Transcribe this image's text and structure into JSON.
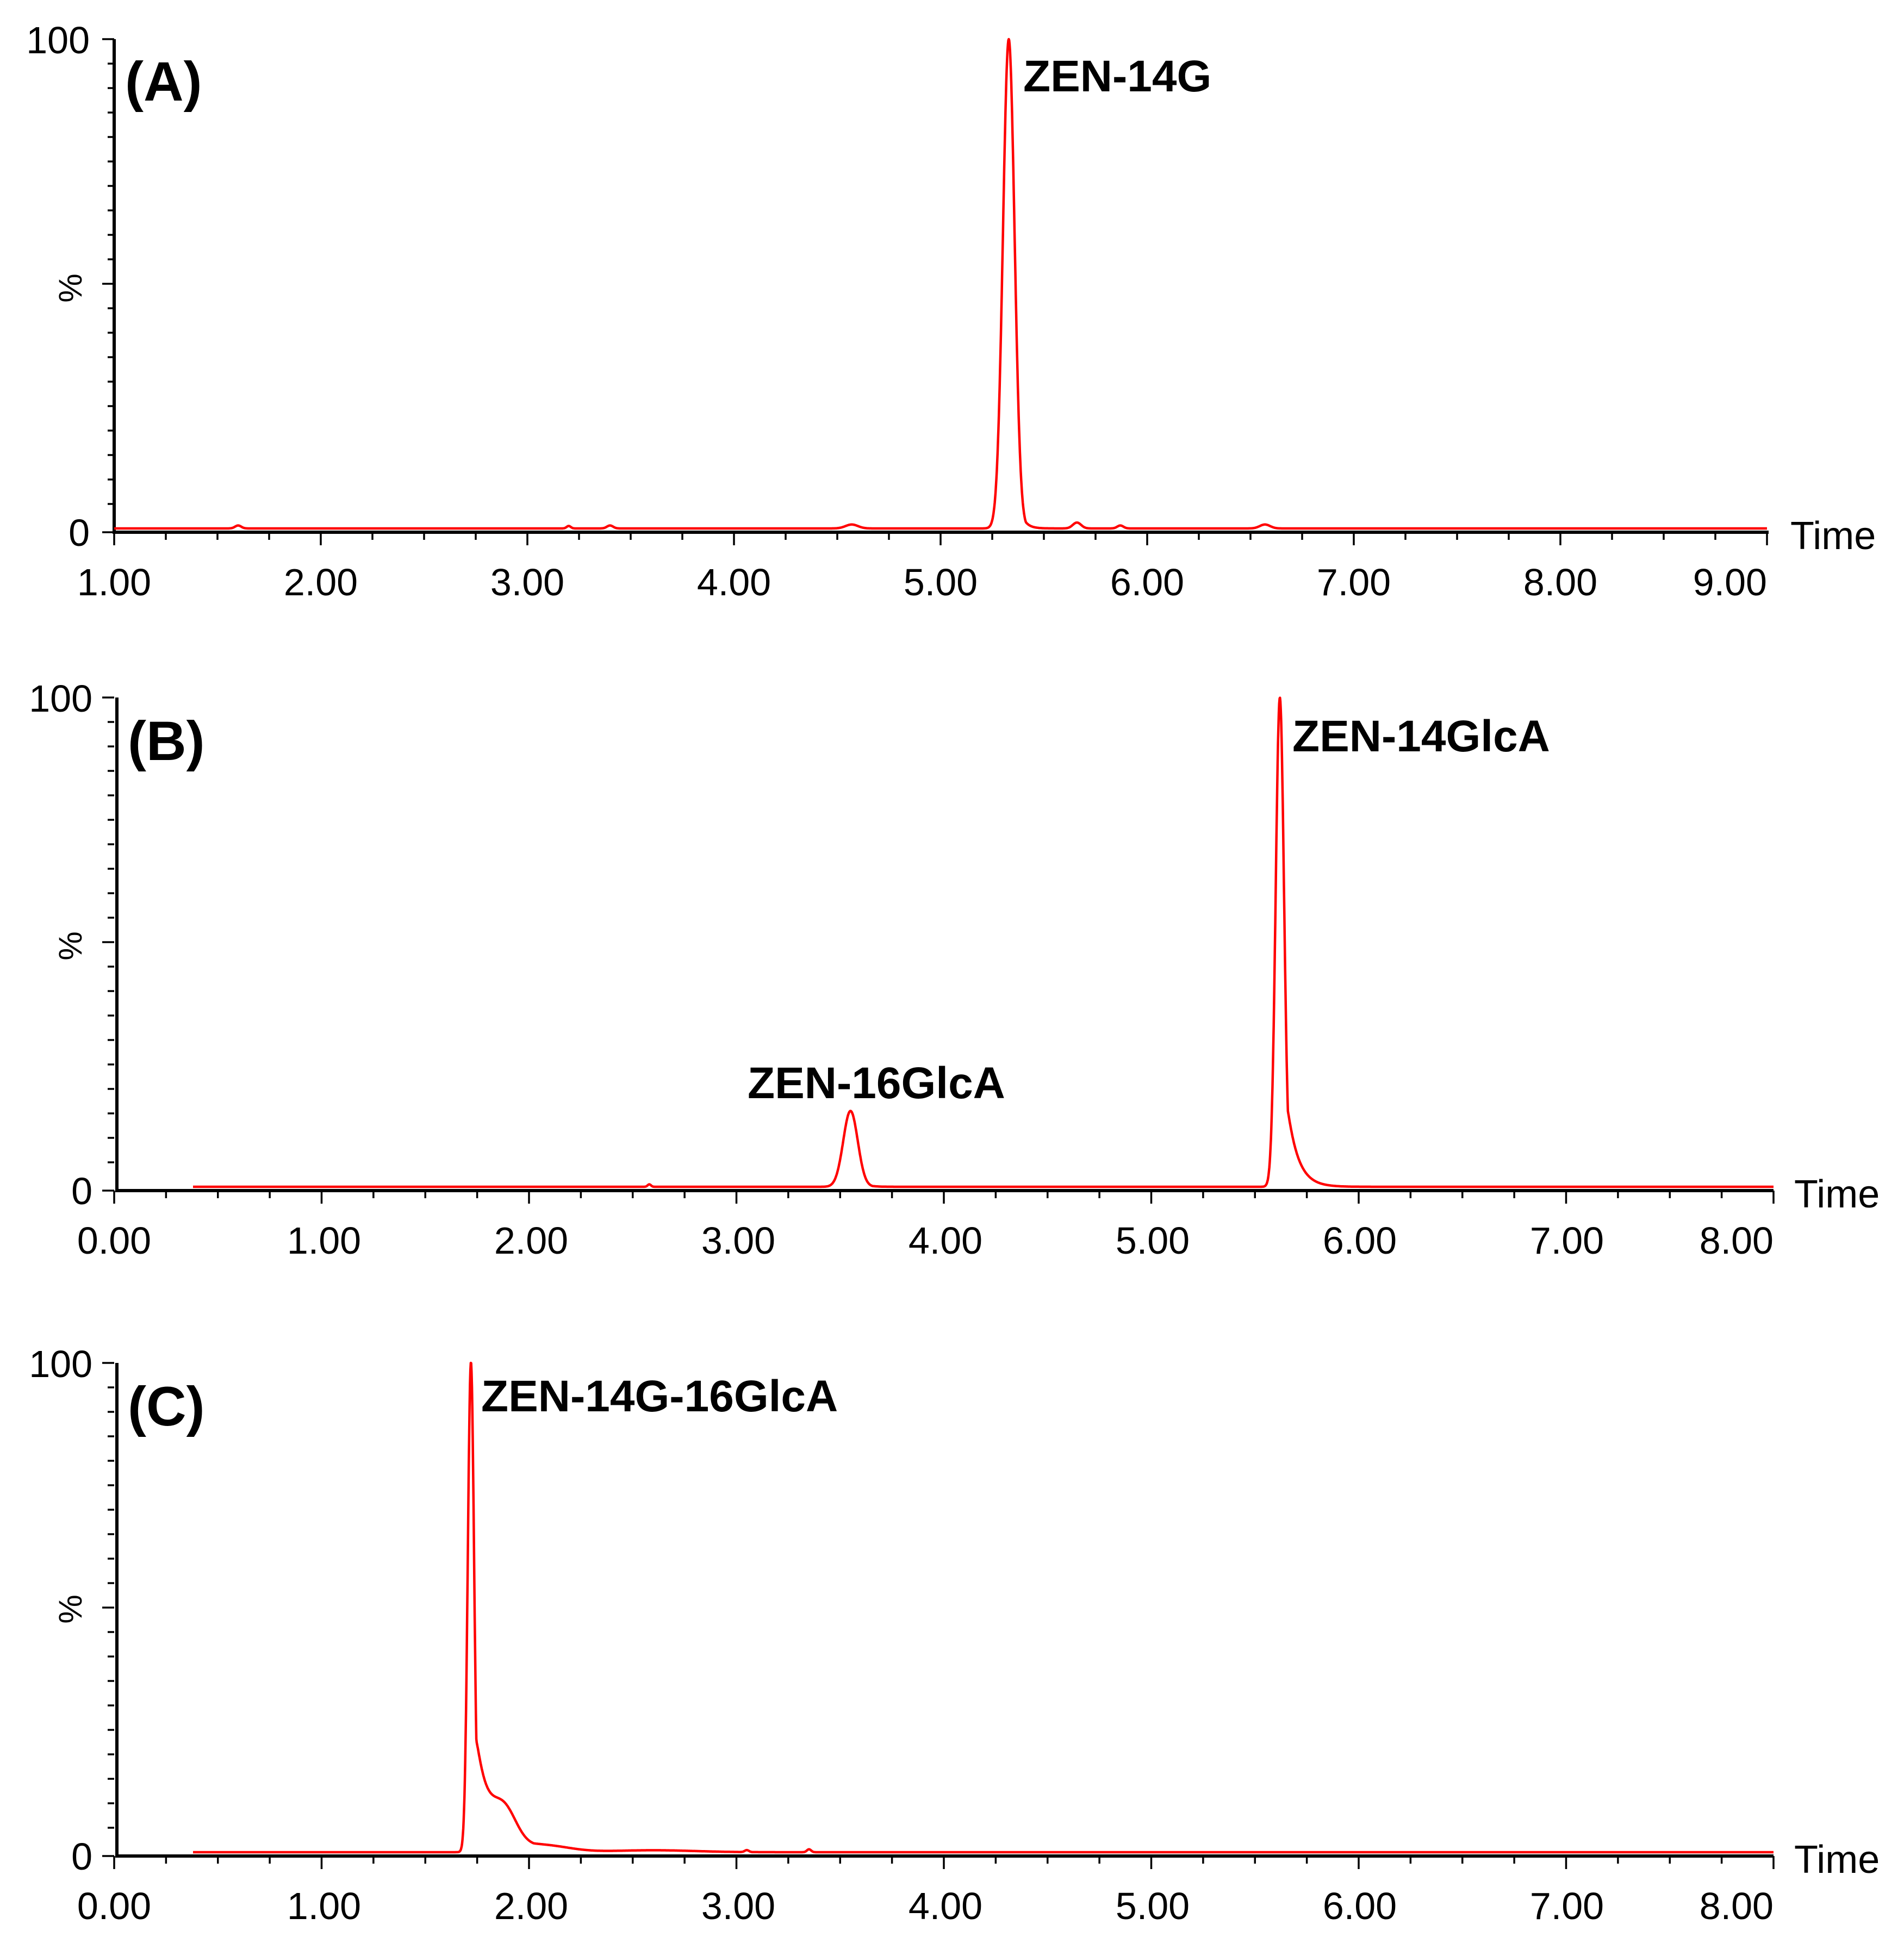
{
  "chart_data": [
    {
      "type": "line",
      "panel_label": "(A)",
      "xlabel": "Time",
      "ylabel": "%",
      "xlim": [
        1.0,
        9.0
      ],
      "ylim": [
        0,
        100
      ],
      "x_ticks": [
        "1.00",
        "2.00",
        "3.00",
        "4.00",
        "5.00",
        "6.00",
        "7.00",
        "8.00",
        "9.00"
      ],
      "y_ticks": [
        "0",
        "100"
      ],
      "grid": false,
      "color": "#ff0000",
      "trace_start": 1.0,
      "trace_end": 9.0,
      "peaks": [
        {
          "rt": 1.6,
          "height": 0.6,
          "width": 0.015
        },
        {
          "rt": 3.2,
          "height": 0.5,
          "width": 0.01
        },
        {
          "rt": 3.4,
          "height": 0.6,
          "width": 0.015
        },
        {
          "rt": 4.57,
          "height": 0.8,
          "width": 0.03
        },
        {
          "rt": 5.33,
          "height": 100,
          "width": 0.028,
          "tail": 0.025
        },
        {
          "rt": 5.66,
          "height": 1.2,
          "width": 0.02
        },
        {
          "rt": 5.87,
          "height": 0.6,
          "width": 0.015
        },
        {
          "rt": 6.57,
          "height": 0.8,
          "width": 0.025
        }
      ],
      "annotations": [
        {
          "text": "ZEN-14G",
          "x": 5.33,
          "y": 100
        }
      ]
    },
    {
      "type": "line",
      "panel_label": "(B)",
      "xlabel": "Time",
      "ylabel": "%",
      "xlim": [
        0.0,
        8.0
      ],
      "ylim": [
        0,
        100
      ],
      "x_ticks": [
        "0.00",
        "1.00",
        "2.00",
        "3.00",
        "4.00",
        "5.00",
        "6.00",
        "7.00",
        "8.00"
      ],
      "y_ticks": [
        "0",
        "100"
      ],
      "grid": false,
      "color": "#ff0000",
      "trace_start": 0.38,
      "trace_end": 8.0,
      "peaks": [
        {
          "rt": 2.58,
          "height": 0.5,
          "width": 0.008
        },
        {
          "rt": 3.55,
          "height": 15.5,
          "width": 0.035,
          "tail": 0.03
        },
        {
          "rt": 5.62,
          "height": 100,
          "width": 0.02,
          "tail": 0.05
        }
      ],
      "annotations": [
        {
          "text": "ZEN-16GlcA",
          "x": 3.55,
          "y": 15.5
        },
        {
          "text": "ZEN-14GlcA",
          "x": 5.62,
          "y": 100
        }
      ]
    },
    {
      "type": "line",
      "panel_label": "(C)",
      "xlabel": "Time",
      "ylabel": "%",
      "xlim": [
        0.0,
        8.0
      ],
      "ylim": [
        0,
        100
      ],
      "x_ticks": [
        "0.00",
        "1.00",
        "2.00",
        "3.00",
        "4.00",
        "5.00",
        "6.00",
        "7.00",
        "8.00"
      ],
      "y_ticks": [
        "0",
        "100"
      ],
      "grid": false,
      "color": "#ff0000",
      "trace_start": 0.38,
      "trace_end": 8.0,
      "peaks": [
        {
          "rt": 1.72,
          "height": 100,
          "width": 0.015,
          "tail": 0.065
        },
        {
          "rt": 1.88,
          "height": 7,
          "width": 0.06,
          "tail": 0.08
        },
        {
          "rt": 2.08,
          "height": 1.2,
          "width": 0.12
        },
        {
          "rt": 2.6,
          "height": 0.4,
          "width": 0.2
        },
        {
          "rt": 3.05,
          "height": 0.4,
          "width": 0.01
        },
        {
          "rt": 3.35,
          "height": 0.6,
          "width": 0.01
        }
      ],
      "annotations": [
        {
          "text": "ZEN-14G-16GlcA",
          "x": 1.72,
          "y": 100
        }
      ]
    }
  ]
}
